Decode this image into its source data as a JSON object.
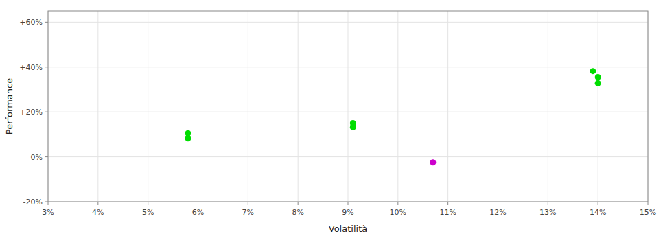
{
  "chart_data": {
    "type": "scatter",
    "xlabel": "Volatilità",
    "ylabel": "Performance",
    "x": [
      0.058,
      0.058,
      0.091,
      0.091,
      0.107,
      0.139,
      0.14,
      0.14
    ],
    "values": [
      0.105,
      0.082,
      0.15,
      0.132,
      -0.025,
      0.382,
      0.355,
      0.328
    ],
    "colors": [
      "#00dd00",
      "#00dd00",
      "#00dd00",
      "#00dd00",
      "#cc00cc",
      "#00dd00",
      "#00dd00",
      "#00dd00"
    ],
    "xlim": [
      0.03,
      0.15
    ],
    "ylim": [
      -0.2,
      0.65
    ],
    "xticks": [
      {
        "value": 0.03,
        "label": "3%"
      },
      {
        "value": 0.04,
        "label": "4%"
      },
      {
        "value": 0.05,
        "label": "5%"
      },
      {
        "value": 0.06,
        "label": "6%"
      },
      {
        "value": 0.07,
        "label": "7%"
      },
      {
        "value": 0.08,
        "label": "8%"
      },
      {
        "value": 0.09,
        "label": "9%"
      },
      {
        "value": 0.1,
        "label": "10%"
      },
      {
        "value": 0.11,
        "label": "11%"
      },
      {
        "value": 0.12,
        "label": "12%"
      },
      {
        "value": 0.13,
        "label": "13%"
      },
      {
        "value": 0.14,
        "label": "14%"
      },
      {
        "value": 0.15,
        "label": "15%"
      }
    ],
    "yticks": [
      {
        "value": -0.2,
        "label": "-20%"
      },
      {
        "value": 0.0,
        "label": "0%"
      },
      {
        "value": 0.2,
        "label": "+20%"
      },
      {
        "value": 0.4,
        "label": "+40%"
      },
      {
        "value": 0.6,
        "label": "+60%"
      }
    ],
    "grid": true
  }
}
